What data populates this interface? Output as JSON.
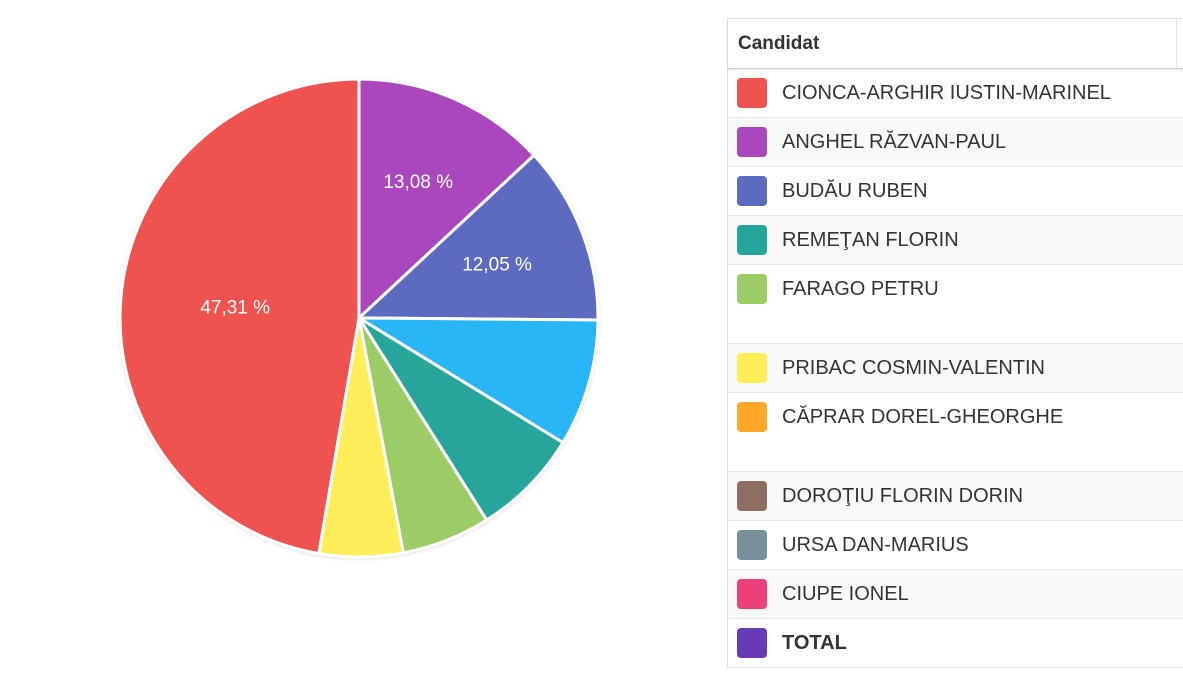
{
  "chart_data": {
    "type": "pie",
    "slices": [
      {
        "label": "CIONCA-ARGHIR IUSTIN-MARINEL",
        "value": 47.31,
        "display": "47,31 %",
        "color": "#ef5350"
      },
      {
        "label": "ANGHEL RĂZVAN-PAUL",
        "value": 13.08,
        "display": "13,08 %",
        "color": "#ab47bc"
      },
      {
        "label": "BUDĂU RUBEN",
        "value": 12.05,
        "display": "12,05 %",
        "color": "#5c6bc0"
      },
      {
        "label": "",
        "value": 8.6,
        "display": "",
        "color": "#29b6f6"
      },
      {
        "label": "REMEŢAN FLORIN",
        "value": 7.3,
        "display": "",
        "color": "#26a69a"
      },
      {
        "label": "FARAGO PETRU",
        "value": 6.0,
        "display": "",
        "color": "#9ccc65"
      },
      {
        "label": "PRIBAC COSMIN-VALENTIN",
        "value": 5.66,
        "display": "",
        "color": "#ffee58"
      }
    ]
  },
  "legend": {
    "header": "Candidat",
    "rows": [
      {
        "label": "CIONCA-ARGHIR IUSTIN-MARINEL",
        "color": "#ef5350",
        "tall": false,
        "bold": false
      },
      {
        "label": "ANGHEL RĂZVAN-PAUL",
        "color": "#ab47bc",
        "tall": false,
        "bold": false
      },
      {
        "label": "BUDĂU RUBEN",
        "color": "#5c6bc0",
        "tall": false,
        "bold": false
      },
      {
        "label": "REMEŢAN FLORIN",
        "color": "#26a69a",
        "tall": false,
        "bold": false
      },
      {
        "label": "FARAGO PETRU",
        "color": "#9ccc65",
        "tall": true,
        "bold": false
      },
      {
        "label": "PRIBAC COSMIN-VALENTIN",
        "color": "#ffee58",
        "tall": false,
        "bold": false
      },
      {
        "label": "CĂPRAR DOREL-GHEORGHE",
        "color": "#ffa726",
        "tall": true,
        "bold": false
      },
      {
        "label": "DOROŢIU FLORIN DORIN",
        "color": "#8d6e63",
        "tall": false,
        "bold": false
      },
      {
        "label": "URSA DAN-MARIUS",
        "color": "#78909c",
        "tall": false,
        "bold": false
      },
      {
        "label": "CIUPE IONEL",
        "color": "#ec407a",
        "tall": false,
        "bold": false
      },
      {
        "label": "TOTAL",
        "color": "#673ab7",
        "tall": false,
        "bold": true
      }
    ]
  }
}
